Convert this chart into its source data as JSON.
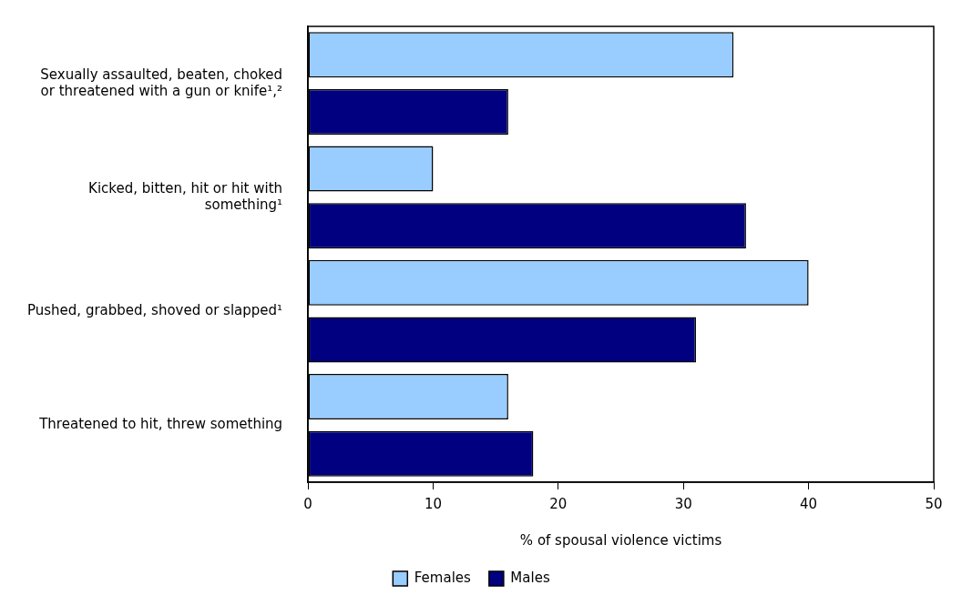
{
  "chart_data": {
    "type": "bar",
    "orientation": "horizontal",
    "xlabel": "% of spousal violence victims",
    "categories": [
      "Sexually assaulted, beaten, choked or threatened with a gun or knife¹,²",
      "Kicked, bitten, hit or hit with something¹",
      "Pushed, grabbed, shoved or slapped¹",
      "Threatened to hit, threw something"
    ],
    "series": [
      {
        "name": "Females",
        "color": "#99ccff",
        "values": [
          34,
          10,
          40,
          16
        ]
      },
      {
        "name": "Males",
        "color": "#000080",
        "values": [
          16,
          35,
          31,
          18
        ]
      }
    ],
    "xlim": [
      0,
      50
    ],
    "xticks": [
      0,
      10,
      20,
      30,
      40,
      50
    ],
    "grid": false,
    "legend": "bottom"
  }
}
